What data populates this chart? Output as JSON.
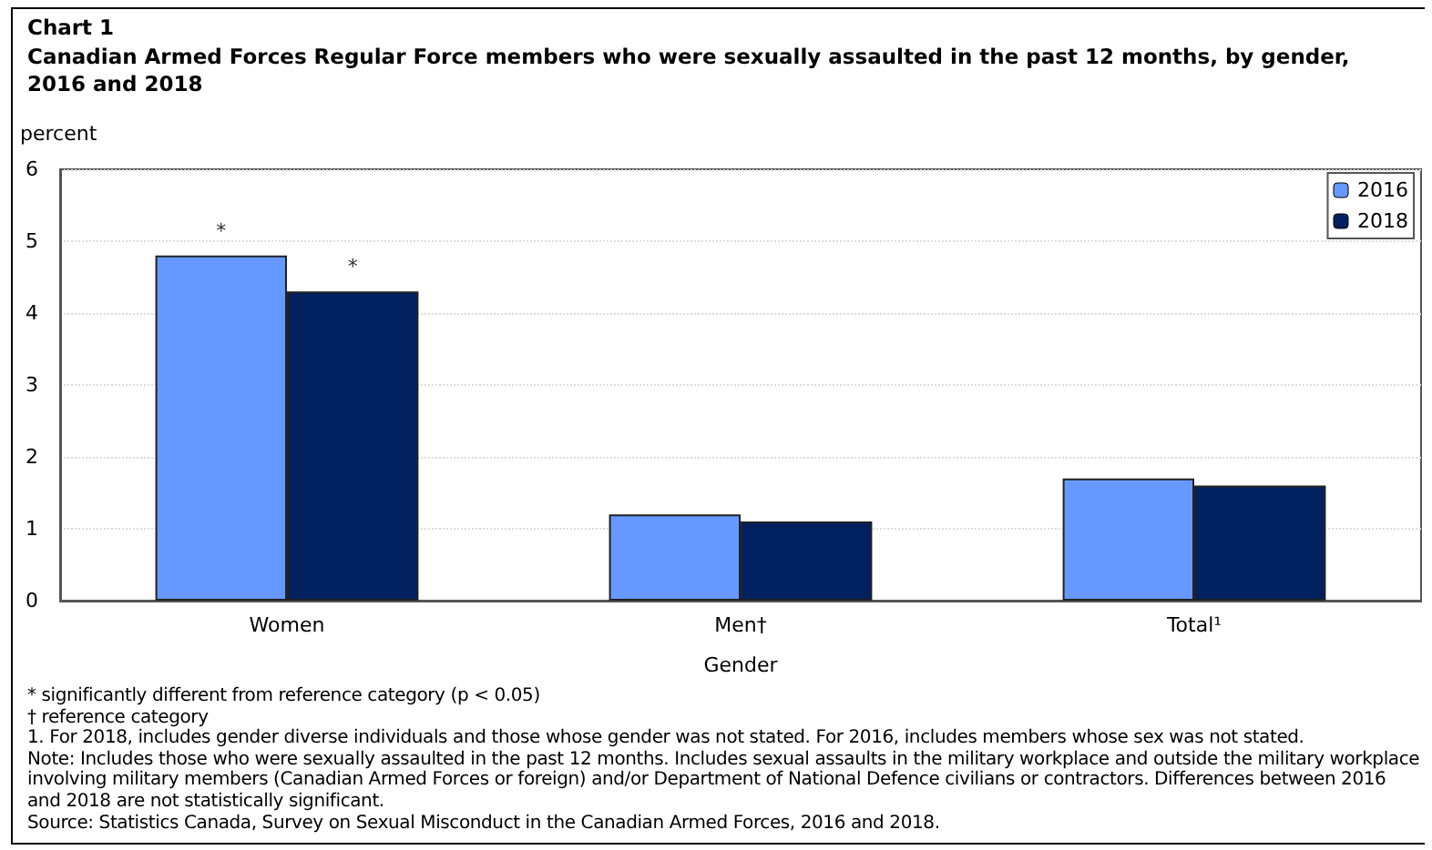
{
  "chart_data": {
    "type": "bar",
    "title": "Chart 1",
    "subtitle": "Canadian Armed Forces Regular Force members who were sexually assaulted in the past 12 months, by gender, 2016 and 2018",
    "xlabel": "Gender",
    "ylabel": "percent",
    "categories": [
      "Women",
      "Men†",
      "Total¹"
    ],
    "series": [
      {
        "name": "2016",
        "color": "#6699ff",
        "values": [
          4.8,
          1.2,
          1.7
        ],
        "value_labels": [
          "*",
          null,
          null
        ]
      },
      {
        "name": "2018",
        "color": "#002060",
        "values": [
          4.3,
          1.1,
          1.6
        ],
        "value_labels": [
          "*",
          null,
          null
        ]
      }
    ],
    "ylim": [
      0,
      6
    ],
    "yticks": [
      0,
      1,
      2,
      3,
      4,
      5,
      6
    ],
    "grid": "y",
    "legend": "top right",
    "annotations": [
      "* significantly different from reference category (p < 0.05)",
      "† reference category",
      "1. For 2018, includes gender diverse individuals and those whose gender was not stated. For 2016, includes members whose sex was not stated.",
      "Note: Includes those who were sexually assaulted in the past 12 months. Includes sexual assaults in the military workplace and outside the military workplace involving military members (Canadian Armed Forces or foreign) and/or Department of National Defence civilians or contractors. Differences between 2016 and 2018 are not statistically significant.",
      "Source: Statistics Canada, Survey on Sexual Misconduct in the Canadian Armed Forces, 2016 and 2018."
    ]
  }
}
